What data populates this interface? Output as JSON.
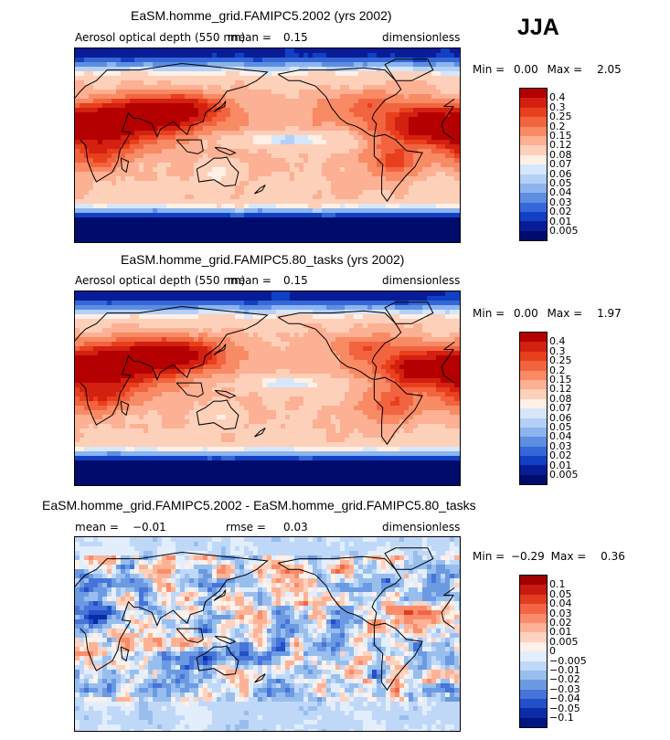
{
  "season": "JJA",
  "panels": [
    {
      "title": "EaSM.homme_grid.FAMIPC5.2002 (yrs 2002)",
      "variable": "Aerosol optical depth (550 nm)",
      "stat_label": "mean =",
      "stat_value": "0.15",
      "units": "dimensionless",
      "min_label": "Min =",
      "min_value": "0.00",
      "max_label": "Max =",
      "max_value": "2.05"
    },
    {
      "title": "EaSM.homme_grid.FAMIPC5.80_tasks (yrs 2002)",
      "variable": "Aerosol optical depth (550 nm)",
      "stat_label": "mean =",
      "stat_value": "0.15",
      "units": "dimensionless",
      "min_label": "Min =",
      "min_value": "0.00",
      "max_label": "Max =",
      "max_value": "1.97"
    },
    {
      "title": "EaSM.homme_grid.FAMIPC5.2002 - EaSM.homme_grid.FAMIPC5.80_tasks",
      "stat_label": "mean =",
      "stat_value": "−0.01",
      "rmse_label": "rmse =",
      "rmse_value": "0.03",
      "units": "dimensionless",
      "min_label": "Min =",
      "min_value": "−0.29",
      "max_label": "Max =",
      "max_value": "0.36"
    }
  ],
  "chart_data": [
    {
      "type": "heatmap",
      "title": "EaSM.homme_grid.FAMIPC5.2002 (yrs 2002)",
      "variable": "Aerosol optical depth (550 nm)",
      "units": "dimensionless",
      "mean": 0.15,
      "min": 0.0,
      "max": 2.05,
      "colorbar_levels": [
        "0.4",
        "0.3",
        "0.25",
        "0.2",
        "0.15",
        "0.12",
        "0.08",
        "0.07",
        "0.06",
        "0.05",
        "0.04",
        "0.03",
        "0.02",
        "0.01",
        "0.005"
      ],
      "colors": [
        "#b40000",
        "#d42010",
        "#e8401c",
        "#f26440",
        "#f88a64",
        "#fcb094",
        "#fdd0ba",
        "#fff0e6",
        "#d6e6fb",
        "#b4d0f6",
        "#8cb4ee",
        "#5e8ee0",
        "#3468d8",
        "#1240c4",
        "#081c96",
        "#000c6c"
      ],
      "projection": "cylindrical equidistant, 0-360 longitude"
    },
    {
      "type": "heatmap",
      "title": "EaSM.homme_grid.FAMIPC5.80_tasks (yrs 2002)",
      "variable": "Aerosol optical depth (550 nm)",
      "units": "dimensionless",
      "mean": 0.15,
      "min": 0.0,
      "max": 1.97,
      "colorbar_levels": [
        "0.4",
        "0.3",
        "0.25",
        "0.2",
        "0.15",
        "0.12",
        "0.08",
        "0.07",
        "0.06",
        "0.05",
        "0.04",
        "0.03",
        "0.02",
        "0.01",
        "0.005"
      ],
      "colors": [
        "#b40000",
        "#d42010",
        "#e8401c",
        "#f26440",
        "#f88a64",
        "#fcb094",
        "#fdd0ba",
        "#fff0e6",
        "#d6e6fb",
        "#b4d0f6",
        "#8cb4ee",
        "#5e8ee0",
        "#3468d8",
        "#1240c4",
        "#081c96",
        "#000c6c"
      ],
      "projection": "cylindrical equidistant, 0-360 longitude"
    },
    {
      "type": "heatmap",
      "title": "EaSM.homme_grid.FAMIPC5.2002 - EaSM.homme_grid.FAMIPC5.80_tasks",
      "units": "dimensionless",
      "mean": -0.01,
      "rmse": 0.03,
      "min": -0.29,
      "max": 0.36,
      "colorbar_levels": [
        "0.1",
        "0.05",
        "0.04",
        "0.03",
        "0.02",
        "0.01",
        "0.005",
        "0",
        "−0.005",
        "−0.01",
        "−0.02",
        "−0.03",
        "−0.04",
        "−0.05",
        "−0.1"
      ],
      "colors": [
        "#a00000",
        "#c81a10",
        "#e23c20",
        "#f46446",
        "#fa8c6c",
        "#fdb296",
        "#fed2c0",
        "#fff0e8",
        "#e2eefc",
        "#c0d8f8",
        "#98beee",
        "#6c9ae2",
        "#4674d8",
        "#2250c8",
        "#0a2ca8",
        "#001480"
      ],
      "projection": "cylindrical equidistant, 0-360 longitude"
    }
  ]
}
